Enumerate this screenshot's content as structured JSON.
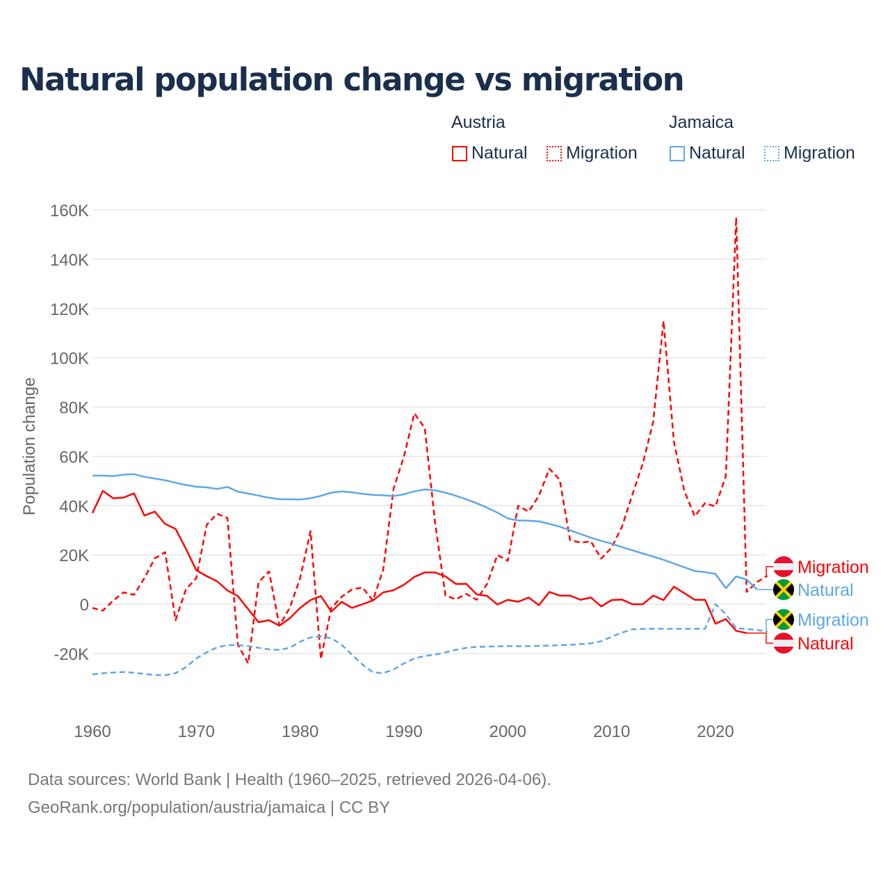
{
  "title": "Natural population change vs migration",
  "legend": {
    "groups": [
      {
        "name": "Austria",
        "items": [
          "Natural",
          "Migration"
        ]
      },
      {
        "name": "Jamaica",
        "items": [
          "Natural",
          "Migration"
        ]
      }
    ]
  },
  "colors": {
    "austria": "#ff0000",
    "jamaica": "#5ea6ea"
  },
  "footer": {
    "line1": "Data sources: World Bank | Health (1960–2025, retrieved 2026-04-06).",
    "line2": "GeoRank.org/population/austria/jamaica | CC BY"
  },
  "chart_data": {
    "type": "line",
    "title": "Natural population change vs migration",
    "xlabel": "",
    "ylabel": "Population change",
    "xlim": [
      1960,
      2025
    ],
    "ylim": [
      -40000,
      160000
    ],
    "yticks": [
      -20000,
      0,
      20000,
      40000,
      60000,
      80000,
      100000,
      120000,
      140000,
      160000
    ],
    "ytick_labels": [
      "-20K",
      "0",
      "20K",
      "40K",
      "60K",
      "80K",
      "100K",
      "120K",
      "140K",
      "160K"
    ],
    "xticks": [
      1960,
      1970,
      1980,
      1990,
      2000,
      2010,
      2020
    ],
    "grid": true,
    "series": [
      {
        "name": "Austria Natural",
        "country": "Austria",
        "kind": "Natural",
        "start": 1960,
        "dashed": false,
        "values": [
          37,
          46,
          43,
          43.3,
          45,
          36,
          37.6,
          32.6,
          30.6,
          22.5,
          13.8,
          11.4,
          9.3,
          5.6,
          3.3,
          -2,
          -7.3,
          -6.5,
          -8.7,
          -5.7,
          -1.5,
          1.7,
          3.3,
          -3,
          1,
          -1.5,
          0,
          1.5,
          4.8,
          5.7,
          7.9,
          11.1,
          12.9,
          12.9,
          11.3,
          8.2,
          8.3,
          4,
          3.4,
          -0.1,
          1.8,
          1,
          2.7,
          -0.4,
          5,
          3.5,
          3.5,
          1.8,
          2.7,
          -0.9,
          1.7,
          1.9,
          0,
          0,
          3.5,
          1.7,
          7.1,
          4.5,
          1.8,
          1.8,
          -7.9,
          -6,
          -10.8,
          -11.7
        ]
      },
      {
        "name": "Austria Migration",
        "country": "Austria",
        "kind": "Migration",
        "start": 1960,
        "dashed": true,
        "values": [
          -1.5,
          -2.6,
          1.5,
          4.8,
          3.8,
          10.6,
          18.6,
          21.1,
          -6.5,
          6,
          10.6,
          32.2,
          36.7,
          35,
          -16.5,
          -24,
          9,
          13.3,
          -8.7,
          -1.5,
          10.6,
          29.7,
          -22.2,
          -1.5,
          3,
          6,
          6.8,
          1.5,
          14,
          47,
          60,
          77.5,
          71.5,
          33,
          3.5,
          2,
          4.2,
          1.8,
          8.2,
          20,
          17.6,
          40,
          37.6,
          44,
          55,
          50.5,
          26,
          25,
          25.5,
          18.5,
          23,
          31.5,
          44.5,
          57,
          74,
          115,
          66,
          46,
          35.7,
          41,
          39.7,
          52,
          157,
          5,
          9,
          11.5
        ]
      },
      {
        "name": "Jamaica Natural",
        "country": "Jamaica",
        "kind": "Natural",
        "start": 1960,
        "dashed": false,
        "values": [
          52.2,
          52.2,
          52,
          52.6,
          52.8,
          51.7,
          51,
          50.3,
          49.3,
          48.4,
          47.7,
          47.4,
          46.8,
          47.6,
          45.7,
          44.9,
          44.1,
          43.2,
          42.6,
          42.6,
          42.5,
          43,
          44,
          45.3,
          45.8,
          45.4,
          44.8,
          44.4,
          44.2,
          43.9,
          44.6,
          45.8,
          46.6,
          46.2,
          45.3,
          44,
          42.6,
          41,
          39.2,
          37.2,
          34.8,
          34,
          33.9,
          33.6,
          32.6,
          31.5,
          30,
          28.5,
          27,
          25.7,
          24.6,
          23.2,
          21.9,
          20.6,
          19.3,
          18,
          16.5,
          15,
          13.5,
          13,
          12.3,
          6.5,
          11.3,
          10,
          6
        ]
      },
      {
        "name": "Jamaica Migration",
        "country": "Jamaica",
        "kind": "Migration",
        "start": 1960,
        "dashed": true,
        "values": [
          -28.5,
          -28,
          -27.7,
          -27.5,
          -27.8,
          -28.3,
          -28.7,
          -28.8,
          -28,
          -25.5,
          -22,
          -19.5,
          -17.5,
          -16.6,
          -16.6,
          -17,
          -17.7,
          -18.3,
          -18.5,
          -17.7,
          -15.2,
          -13.5,
          -13,
          -13.8,
          -16.5,
          -20.5,
          -24.5,
          -27.6,
          -28,
          -26.5,
          -24,
          -22,
          -21,
          -20.5,
          -19.5,
          -18.5,
          -17.7,
          -17.3,
          -17.2,
          -17.1,
          -17,
          -17,
          -17,
          -16.9,
          -16.8,
          -16.6,
          -16.5,
          -16.2,
          -15.9,
          -15,
          -13.2,
          -11.5,
          -10.2,
          -10,
          -10,
          -10,
          -10,
          -10,
          -10,
          -10,
          0,
          -4,
          -9.8,
          -10,
          -10.5,
          -11
        ]
      }
    ],
    "value_unit": "thousands",
    "end_labels": [
      "Migration",
      "Natural",
      "Migration",
      "Natural"
    ]
  }
}
